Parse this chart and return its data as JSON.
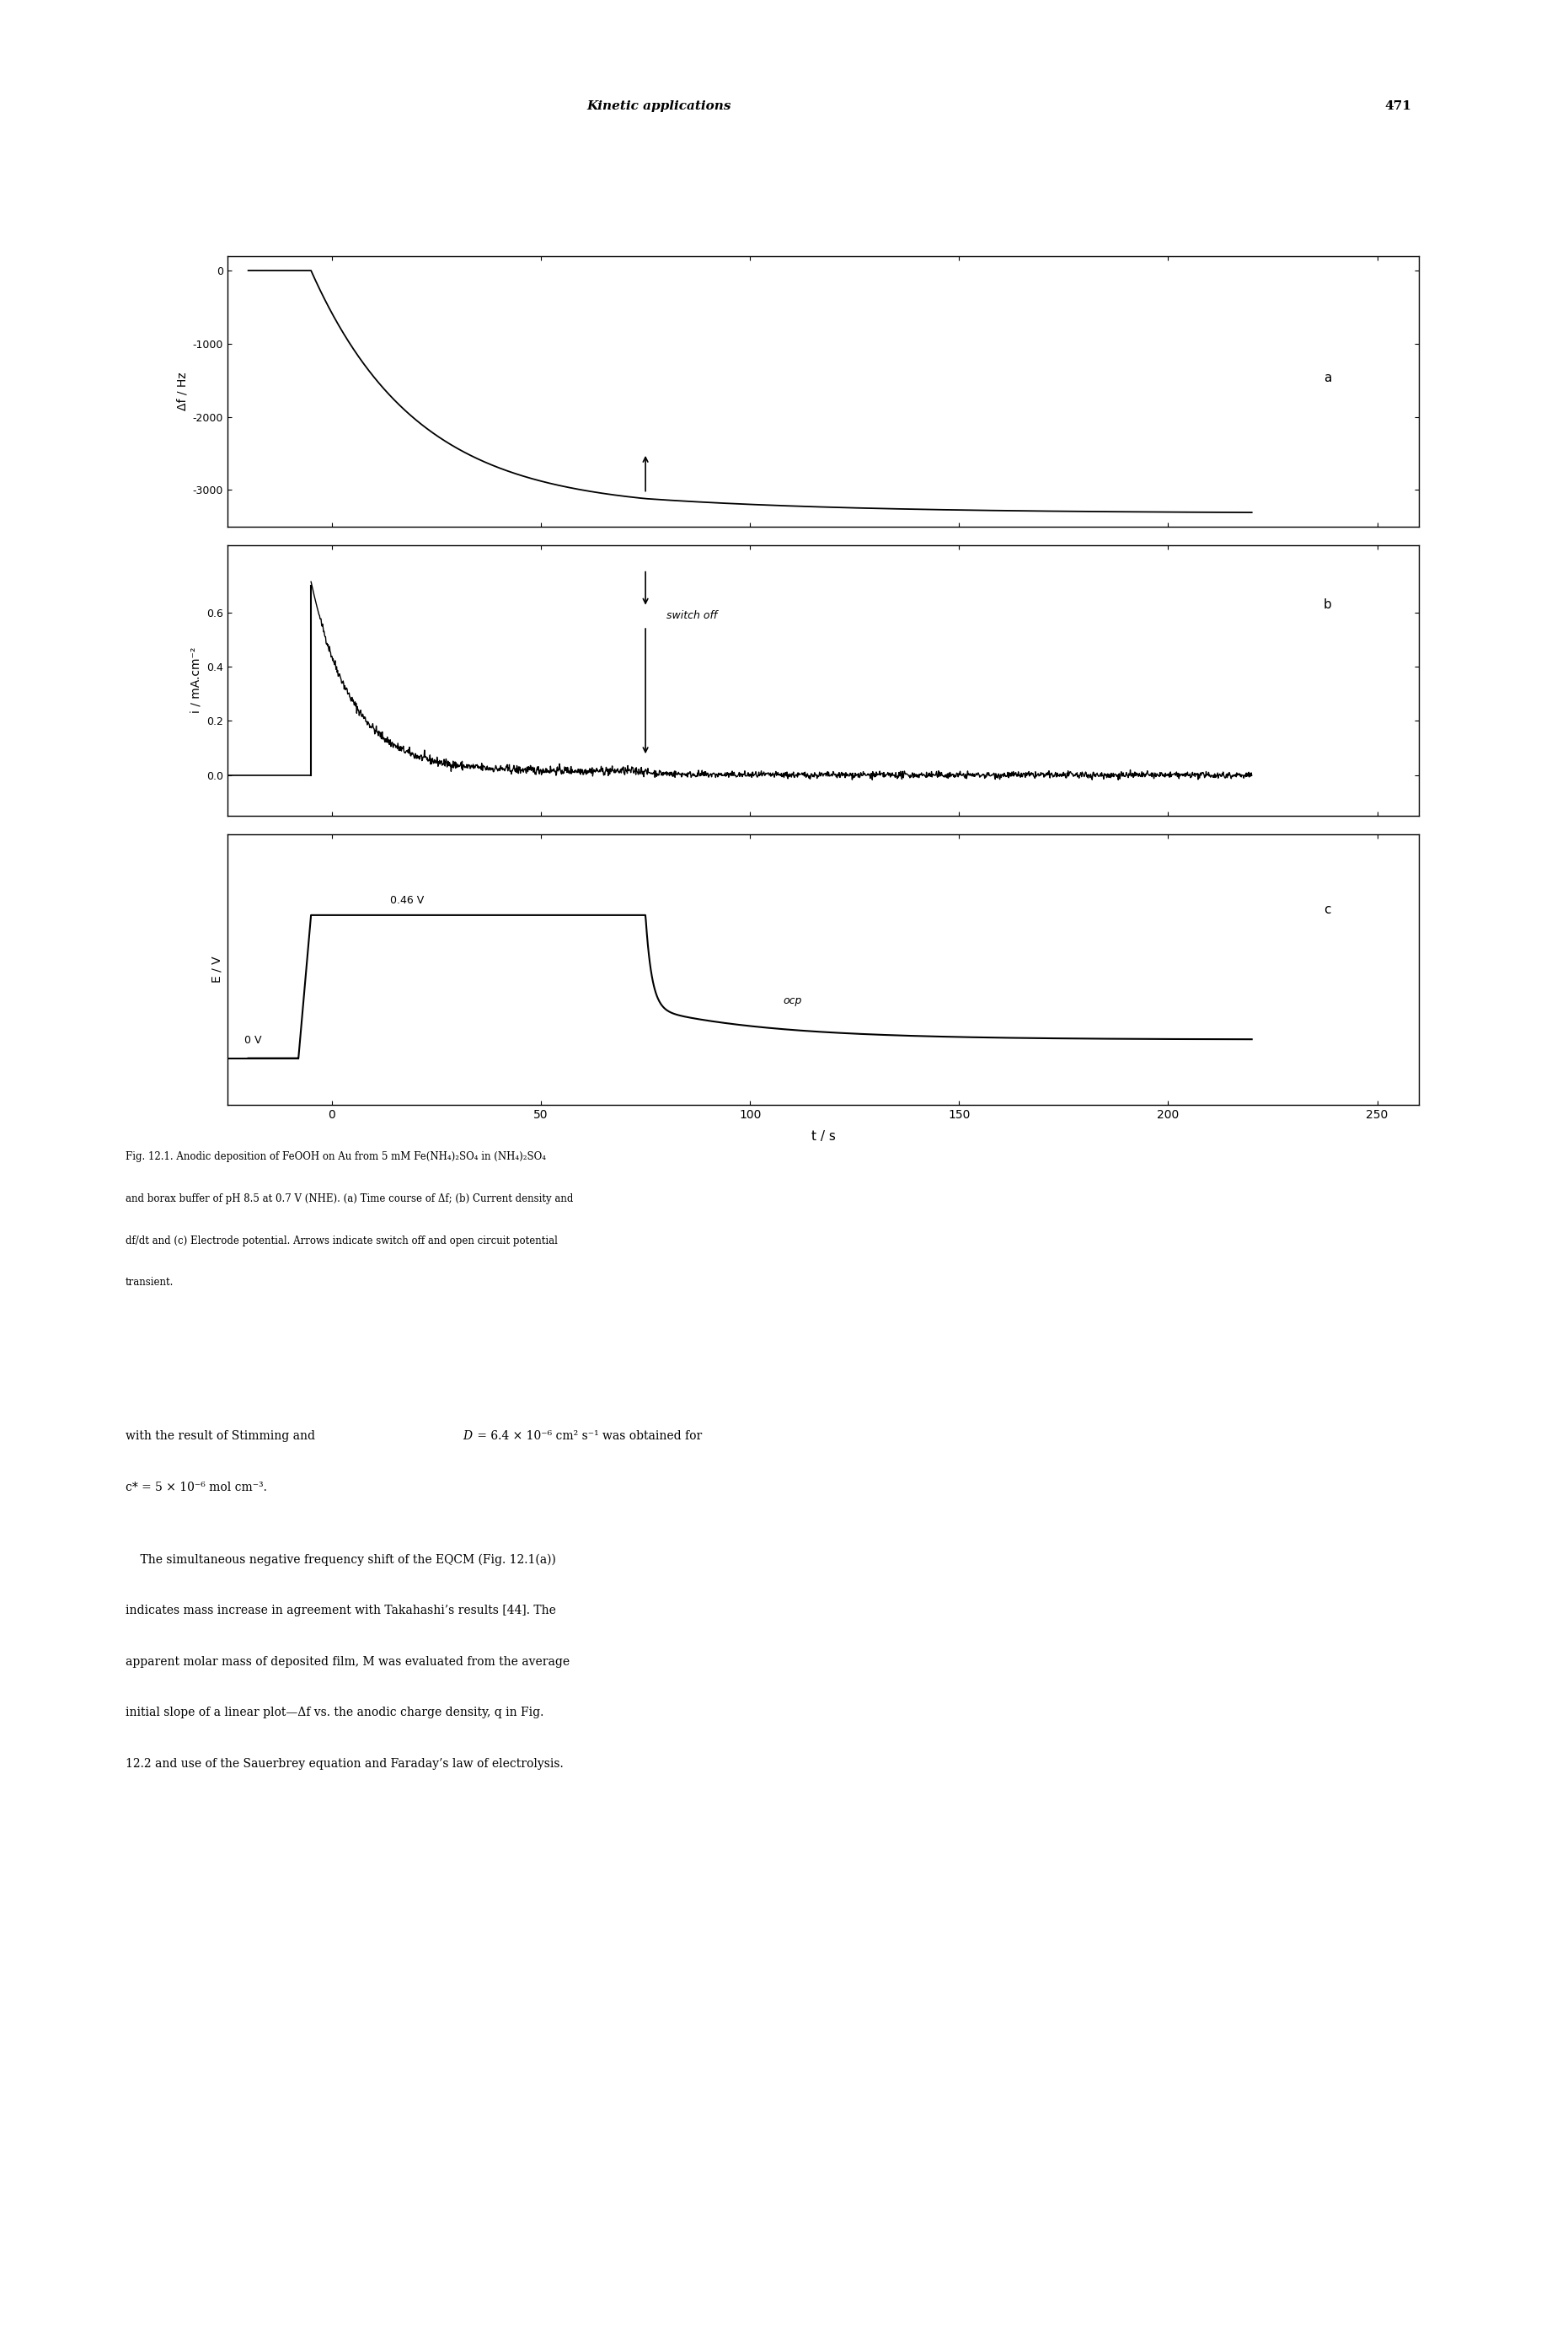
{
  "page_header": "Kinetic applications",
  "page_number": "471",
  "header_fontsize": 11,
  "fig_label_a": "a",
  "fig_label_b": "b",
  "fig_label_c": "c",
  "panel_a": {
    "ylabel": "Δf / Hz",
    "ylim": [
      -3500,
      200
    ],
    "yticks": [
      0,
      -1000,
      -2000,
      -3000
    ]
  },
  "panel_b": {
    "ylabel": "i / mA.cm⁻²",
    "ylim": [
      -0.15,
      0.85
    ],
    "yticks": [
      0.0,
      0.2,
      0.4,
      0.6
    ],
    "annotation": "switch off"
  },
  "panel_c": {
    "ylabel": "E / V",
    "ylim": [
      -0.15,
      0.72
    ],
    "annotation_0V": "0 V",
    "annotation_046V": "0.46 V",
    "annotation_ocp": "ocp"
  },
  "xlabel": "t / s",
  "xlim": [
    -25,
    260
  ],
  "xticks": [
    0,
    50,
    100,
    150,
    200,
    250
  ],
  "switch_off_time": 75,
  "background_color": "#ffffff",
  "caption_lines": [
    "Fig. 12.1. Anodic deposition of FeOOH on Au from 5 mM Fe(NH₄)₂SO₄ in (NH₄)₂SO₄",
    "and borax buffer of pH 8.5 at 0.7 V (NHE). (a) Time course of Δf; (b) Current density and",
    "df/dt and (c) Electrode potential. Arrows indicate switch off and open circuit potential",
    "transient."
  ],
  "body_line1": "with the result of Stimming and ",
  "body_line1b": "D",
  "body_line1c": " = 6.4 × 10⁻⁶ cm² s⁻¹ was obtained for",
  "body_line2": "c* = 5 × 10⁻⁶ mol cm⁻³.",
  "body_para2": [
    "    The simultaneous negative frequency shift of the EQCM (Fig. 12.1(a))",
    "indicates mass increase in agreement with Takahashi’s results [44]. The",
    "apparent molar mass of deposited film, ",
    "M",
    " was evaluated from the average",
    "initial slope of a linear plot—Δf vs. the anodic charge density, ",
    "q",
    " in Fig.",
    "12.2 and use of the Sauerbrey equation and Faraday’s law of electrolysis."
  ]
}
